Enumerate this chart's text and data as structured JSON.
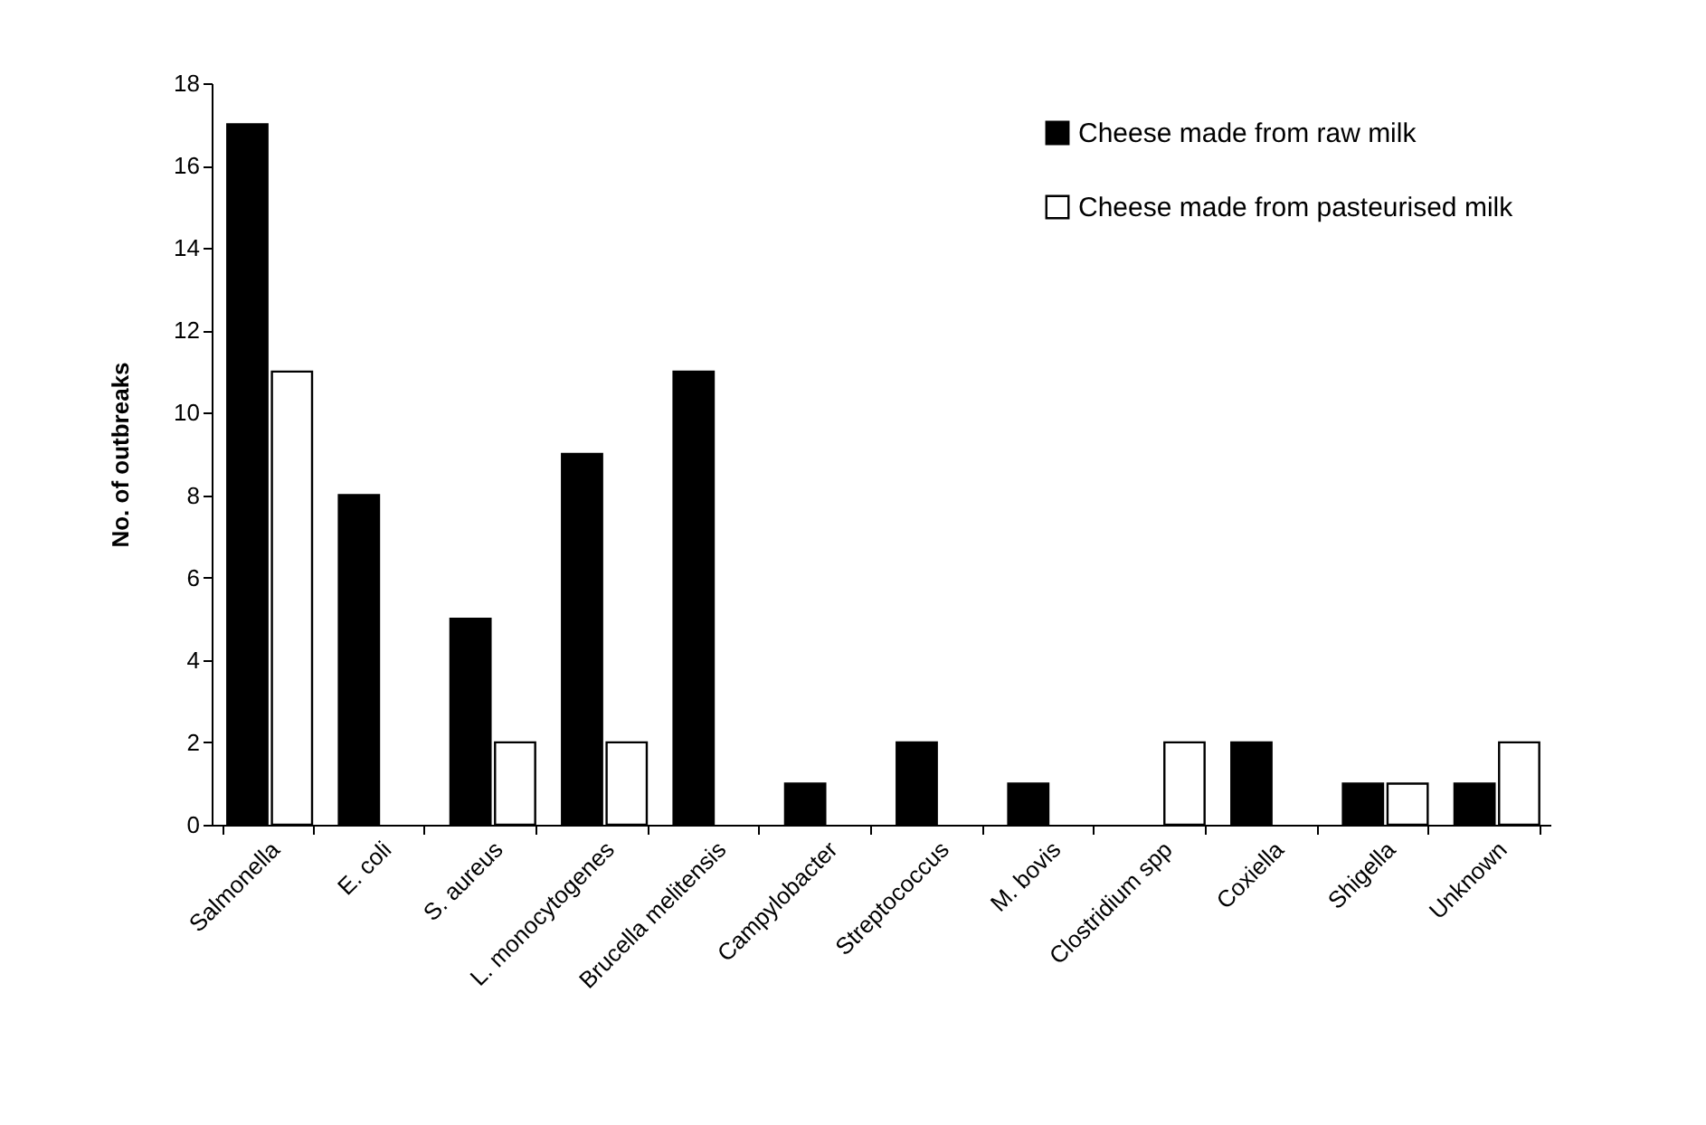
{
  "chart_data": {
    "type": "bar",
    "ylabel": "No. of outbreaks",
    "categories": [
      "Salmonella",
      "E. coli",
      "S. aureus",
      "L. monocytogenes",
      "Brucella melitensis",
      "Campylobacter",
      "Streptococcus",
      "M. bovis",
      "Clostridium spp",
      "Coxiella",
      "Shigella",
      "Unknown"
    ],
    "series": [
      {
        "name": "Cheese made from raw milk",
        "color": "#000000",
        "values": [
          17,
          8,
          5,
          9,
          11,
          1,
          2,
          1,
          0,
          2,
          1,
          1
        ]
      },
      {
        "name": "Cheese made from pasteurised milk",
        "color": "#ffffff",
        "values": [
          11,
          0,
          2,
          2,
          0,
          0,
          0,
          0,
          2,
          0,
          1,
          2
        ]
      }
    ],
    "ylim": [
      0,
      18
    ],
    "yticks": [
      0,
      2,
      4,
      6,
      8,
      10,
      12,
      14,
      16,
      18
    ],
    "grid": false,
    "legend": "top right"
  }
}
